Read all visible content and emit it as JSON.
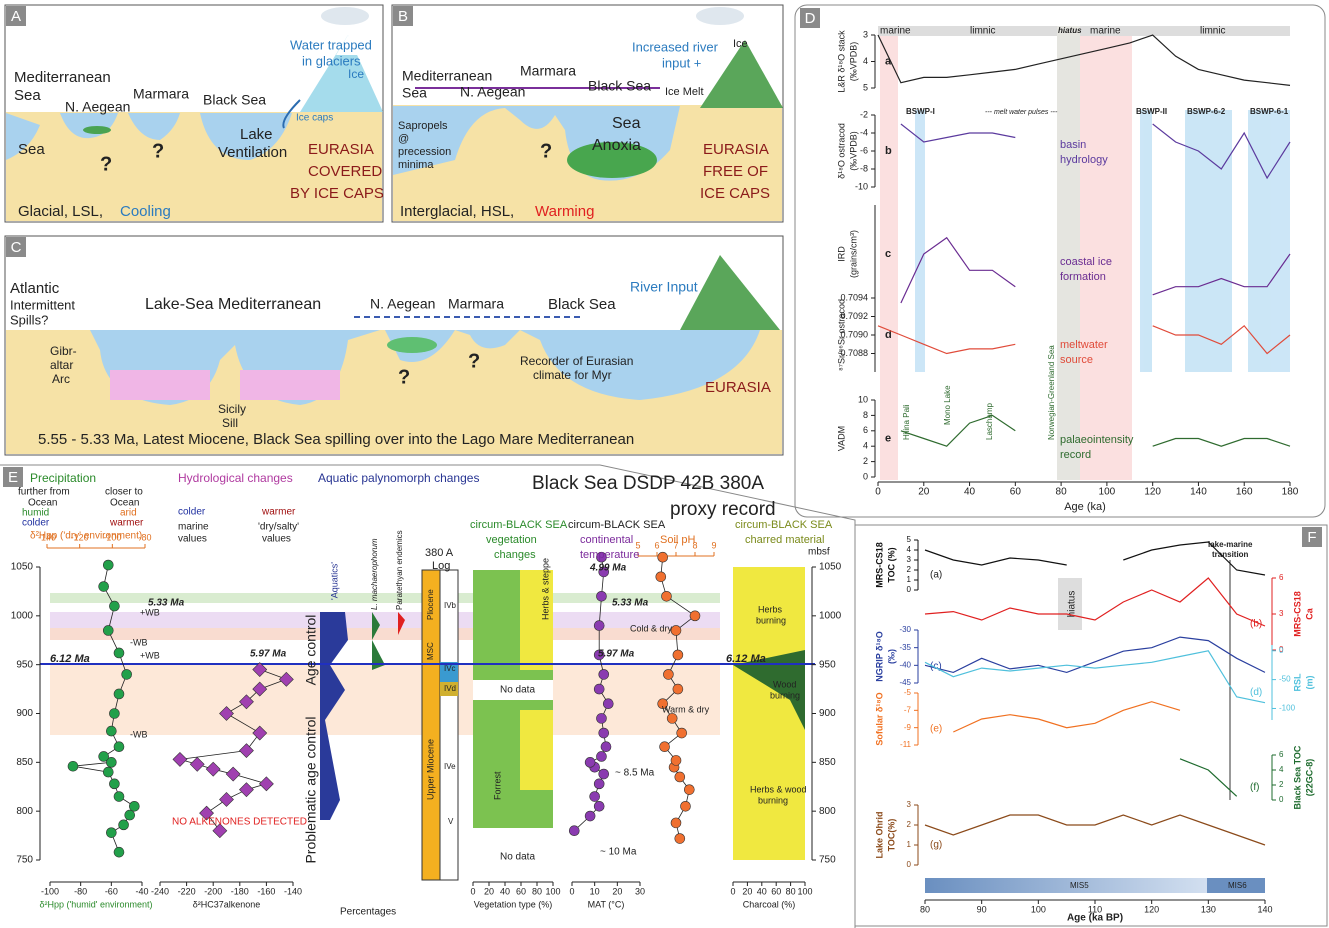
{
  "A": {
    "letter": "A",
    "labels": [
      "Mediterranean",
      "Sea",
      "N. Aegean",
      "Marmara",
      "Black Sea",
      "Water trapped",
      "in glaciers",
      "Ice",
      "Ice caps",
      "Sea",
      "?",
      "?",
      "Lake",
      "Ventilation",
      "EURASIA",
      "COVERED",
      "BY ICE CAPS",
      "Glacial, LSL,",
      "Cooling"
    ]
  },
  "B": {
    "letter": "B",
    "labels": [
      "Increased river",
      "input +",
      "Ice",
      "Mediterranean",
      "Sea",
      "Marmara",
      "N. Aegean",
      "Black Sea",
      "Ice Melt",
      "Sea",
      "Anoxia",
      "Sapropels",
      "@",
      "precession",
      "minima",
      "?",
      "EURASIA",
      "FREE OF",
      "ICE CAPS",
      "Interglacial, HSL,",
      "Warming"
    ]
  },
  "C": {
    "letter": "C",
    "labels": [
      "Atlantic",
      "Intermittent",
      "Spills?",
      "Lake-Sea Mediterranean",
      "N. Aegean",
      "Marmara",
      "Black Sea",
      "River Input",
      "Gibr-",
      "altar",
      "Arc",
      "Sicily",
      "Sill",
      "?",
      "?",
      "Recorder of Eurasian",
      "climate for Myr",
      "EURASIA",
      "5.55 - 5.33 Ma, Latest Miocene, Black Sea spilling over into the Lago Mare Mediterranean"
    ]
  },
  "D": {
    "letter": "D",
    "headers": [
      "marine",
      "limnic",
      "hiatus",
      "marine",
      "limnic"
    ],
    "pulses": [
      "BSWP-I",
      "--- melt water pulses ---",
      "BSWP-II",
      "BSWP-6-2",
      "BSWP-6-1"
    ],
    "labels": [
      "basin",
      "hydrology",
      "coastal ice",
      "formation",
      "meltwater",
      "source",
      "palaeointensity",
      "record"
    ],
    "events": [
      "Hilina Pali",
      "Mono Lake",
      "Laschamp",
      "Norwegian-Greenland Sea"
    ],
    "xlabel": "Age (ka)",
    "xlim": [
      0,
      180
    ],
    "xticks": [
      0,
      20,
      40,
      60,
      80,
      100,
      120,
      140,
      160,
      180
    ],
    "x": [
      0,
      10,
      20,
      30,
      40,
      50,
      60,
      70,
      80,
      90,
      100,
      110,
      120,
      130,
      140,
      150,
      160,
      170,
      180
    ],
    "plots": [
      {
        "letter": "a",
        "ylabel": [
          "L&R δ¹⁸O stack",
          "(‰VPDB)"
        ],
        "ylim": [
          5,
          3
        ],
        "yticks": [
          3,
          4,
          5
        ],
        "color": "#222222",
        "values": [
          3.0,
          4.8,
          4.6,
          4.6,
          4.5,
          4.4,
          4.3,
          4.1,
          3.9,
          3.7,
          3.5,
          3.3,
          3.0,
          3.8,
          4.3,
          4.5,
          4.7,
          4.8,
          4.9
        ]
      },
      {
        "letter": "b",
        "ylabel": [
          "δ¹⁸O ostracod",
          "(‰VPDB)"
        ],
        "ylim": [
          -10,
          -2
        ],
        "yticks": [
          -2,
          -4,
          -6,
          -8,
          -10
        ],
        "color": "#5b3a9e",
        "values": [
          null,
          -3,
          -5,
          -4.5,
          -4,
          -4,
          -4.5,
          null,
          null,
          null,
          null,
          null,
          -3,
          -5,
          -6,
          -8,
          -4,
          -9,
          -5
        ]
      },
      {
        "letter": "c",
        "ylabel": [
          "IRD",
          "(grains/cm³)"
        ],
        "ylim": [
          0,
          6
        ],
        "color": "#6a2c91",
        "values": [
          null,
          0,
          3,
          4,
          2,
          2,
          1,
          null,
          null,
          null,
          null,
          null,
          0.5,
          1,
          1,
          1.5,
          1,
          1,
          3
        ]
      },
      {
        "letter": "d",
        "ylabel": [
          "⁸⁷Sr/⁸⁶Sr ostracod"
        ],
        "ylim": [
          0.7086,
          0.7094
        ],
        "yticks": [
          0.7094,
          0.7092,
          {
            "value": 0.709,
            "label": "0.7090"
          },
          0.7088
        ],
        "color": "#e04b3a",
        "values": [
          0.7091,
          0.709,
          0.7089,
          0.7088,
          0.70885,
          0.70885,
          0.7089,
          null,
          null,
          null,
          null,
          null,
          0.7091,
          0.709,
          0.709,
          0.7089,
          0.7091,
          0.7088,
          0.709
        ]
      },
      {
        "letter": "e",
        "ylabel": [
          "VADM"
        ],
        "ylim": [
          0,
          10
        ],
        "yticks": [
          0,
          2,
          4,
          6,
          8,
          10
        ],
        "color": "#2f6b2f",
        "values": [
          null,
          6,
          5,
          4,
          7,
          8,
          6,
          null,
          null,
          null,
          null,
          null,
          4,
          5,
          5,
          4,
          5,
          5,
          4
        ]
      }
    ]
  },
  "E": {
    "letter": "E",
    "labels": [
      "Precipitation",
      "further from",
      "Ocean",
      "closer to",
      "Ocean",
      "humid",
      "arid",
      "colder",
      "warmer",
      "δ²Hpp ('dry' environment)",
      "Hydrological changes",
      "colder",
      "warmer",
      "marine",
      "values",
      "'dry/salty'",
      "values",
      "Aquatic palynomorph changes",
      "Black Sea DSDP 42B 380A",
      "proxy record",
      "5.33 Ma",
      "+WB",
      "-WB",
      "+WB",
      "6.12 Ma",
      "5.97 Ma",
      "-WB",
      "NO ALKENONES DETECTED",
      "Age control",
      "Problematic age control",
      "'Aquatics'",
      "L. machaerophorum",
      "Paratethyan endemics",
      "380 A",
      "Log",
      "IVb",
      "IVc",
      "IVd",
      "IVe",
      "V",
      "MSC",
      "Pliocene",
      "Upper Miocene",
      "circum-BLACK SEA",
      "vegetation",
      "changes",
      "Herbs & steppe",
      "No data",
      "Forrest",
      "No data",
      "circum-BLACK SEA",
      "continental",
      "temperature",
      "4.99 Ma",
      "5.33 Ma",
      "5.97 Ma",
      "~ 8.5 Ma",
      "~ 10 Ma",
      "Soil pH",
      "Cold & dry",
      "Warm & dry",
      "6.12 Ma",
      "circum-BLACK SEA",
      "charred material",
      "Herbs",
      "burning",
      "Wood",
      "burning",
      "Herbs & wood",
      "burning",
      "Percentages",
      "mbsf"
    ],
    "depth": {
      "lim": [
        750,
        1050
      ],
      "ticks": [
        750,
        800,
        850,
        900,
        950,
        1000,
        1050
      ]
    },
    "precip_top": {
      "lim": [
        -140,
        -80
      ],
      "ticks": [
        -140,
        -120,
        -100,
        -80
      ]
    },
    "precip": {
      "lim": [
        -100,
        -40
      ],
      "ticks": [
        -100,
        -80,
        -60,
        -40
      ],
      "label": "δ²Hpp ('humid' environment)",
      "color": "#22a04a",
      "depths": [
        758,
        778,
        786,
        796,
        805,
        815,
        828,
        840,
        846,
        850,
        856,
        866,
        882,
        900,
        920,
        940,
        962,
        985,
        1010,
        1030,
        1052
      ],
      "values": [
        -55,
        -60,
        -52,
        -48,
        -45,
        -55,
        -58,
        -62,
        -85,
        -60,
        -65,
        -55,
        -60,
        -58,
        -55,
        -50,
        -55,
        -62,
        -58,
        -65,
        -62
      ]
    },
    "hydro": {
      "lim": [
        -240,
        -140
      ],
      "ticks": [
        -240,
        -220,
        -200,
        -180,
        -160,
        -140
      ],
      "label": "δ²HC37alkenone",
      "color": "#a040b0",
      "depths": [
        780,
        798,
        812,
        822,
        828,
        838,
        843,
        848,
        853,
        862,
        880,
        900,
        912,
        925,
        935,
        945
      ],
      "values": [
        -195,
        -205,
        -190,
        -175,
        -160,
        -185,
        -200,
        -212,
        -225,
        -175,
        -165,
        -190,
        -175,
        -165,
        -145,
        -165
      ]
    },
    "vegetation": {
      "lim": [
        0,
        100
      ],
      "ticks": [
        0,
        20,
        40,
        60,
        80,
        100
      ],
      "label": "Vegetation type (%)"
    },
    "mat": {
      "lim": [
        0,
        30
      ],
      "ticks": [
        0,
        10,
        20,
        30
      ],
      "label": "MAT (°C)",
      "color": "#8a3bb0",
      "depths": [
        780,
        795,
        805,
        815,
        828,
        838,
        845,
        850,
        856,
        866,
        880,
        895,
        910,
        925,
        940,
        960,
        990,
        1020,
        1045,
        1060
      ],
      "values": [
        1,
        8,
        12,
        10,
        12,
        14,
        10,
        8,
        13,
        15,
        14,
        13,
        16,
        12,
        14,
        12,
        12,
        13,
        14,
        13
      ]
    },
    "ph": {
      "lim": [
        5,
        9
      ],
      "ticks": [
        5,
        6,
        7,
        8,
        9
      ],
      "color": "#f07030",
      "depths": [
        772,
        788,
        805,
        822,
        835,
        845,
        852,
        866,
        880,
        895,
        910,
        925,
        940,
        960,
        985,
        1000,
        1020,
        1040,
        1060
      ],
      "values": [
        7.2,
        7.0,
        7.5,
        7.7,
        7.2,
        6.9,
        7.0,
        6.4,
        7.3,
        6.8,
        6.3,
        7.1,
        6.6,
        7.1,
        7.0,
        8.0,
        6.5,
        6.2,
        6.3
      ]
    },
    "charcoal": {
      "lim": [
        0,
        100
      ],
      "ticks": [
        0,
        20,
        40,
        60,
        80,
        100
      ],
      "label": "Charcoal (%)"
    }
  },
  "F": {
    "letter": "F",
    "labels": [
      "hiatus",
      "lake-marine",
      "transition",
      "MIS5",
      "MIS6"
    ],
    "xlabel": "Age (ka BP)",
    "xlim": [
      80,
      140
    ],
    "xticks": [
      80,
      90,
      100,
      110,
      120,
      130,
      140
    ],
    "x": [
      80,
      85,
      90,
      95,
      100,
      105,
      110,
      115,
      120,
      125,
      130,
      135,
      140
    ],
    "series": [
      {
        "letter": "(a)",
        "ylabel": [
          "MRS-CS18",
          "TOC (%)"
        ],
        "side": "left",
        "ylim": [
          0,
          5
        ],
        "yticks": [
          0,
          1,
          2,
          3,
          4,
          5
        ],
        "color": "#111111",
        "values": [
          4,
          3,
          2.5,
          3.2,
          3,
          2.5,
          null,
          3,
          4,
          4.5,
          4.8,
          2,
          1.5
        ]
      },
      {
        "letter": "(b)",
        "ylabel": [
          "MRS-CS18",
          "Ca"
        ],
        "side": "right",
        "ylim": [
          0,
          6
        ],
        "yticks": [
          0,
          3,
          6
        ],
        "color": "#e02020",
        "values": [
          3,
          3.2,
          2.5,
          3.5,
          3,
          3,
          2.5,
          4,
          5,
          4,
          6,
          3,
          2
        ]
      },
      {
        "letter": "(c)",
        "ylabel": [
          "NGRIP δ¹⁸O",
          "(‰)"
        ],
        "side": "left",
        "ylim": [
          -45,
          -30
        ],
        "yticks": [
          -30,
          -35,
          -40,
          -45
        ],
        "color": "#2a3f9f",
        "values": [
          -40,
          -42,
          -38,
          -41,
          -40,
          -42,
          -39,
          -36,
          -35,
          -32,
          -33,
          -38,
          -42
        ]
      },
      {
        "letter": "(d)",
        "ylabel": [
          "RSL",
          "(m)"
        ],
        "side": "right",
        "ylim": [
          -120,
          10
        ],
        "yticks": [
          0,
          -50,
          -100
        ],
        "color": "#4fc0dc",
        "values": [
          -20,
          -45,
          -30,
          -35,
          -30,
          -25,
          -30,
          -25,
          -20,
          -10,
          0,
          -80,
          -90
        ]
      },
      {
        "letter": "(e)",
        "ylabel": [
          "Sofular δ¹⁸O"
        ],
        "side": "left",
        "ylim": [
          -11,
          -5
        ],
        "yticks": [
          -5,
          -7,
          -9,
          -11
        ],
        "color": "#f07020",
        "values": [
          null,
          -9.5,
          -8,
          -7.5,
          -8,
          -9,
          -8.5,
          -7,
          -6,
          -7,
          null,
          null,
          null
        ]
      },
      {
        "letter": "(f)",
        "ylabel": [
          "Black Sea TOC",
          "(22GC-8)"
        ],
        "side": "right",
        "ylim": [
          0,
          6
        ],
        "yticks": [
          0,
          2,
          4,
          6
        ],
        "color": "#1e6b2e",
        "values": [
          null,
          null,
          null,
          null,
          null,
          null,
          null,
          null,
          null,
          5.5,
          4,
          0.5,
          null
        ]
      },
      {
        "letter": "(g)",
        "ylabel": [
          "Lake Ohrid",
          "TOC(%)"
        ],
        "side": "left",
        "ylim": [
          0,
          3
        ],
        "yticks": [
          0,
          1,
          2,
          3
        ],
        "color": "#8b4a1a",
        "values": [
          2,
          1.5,
          2,
          2.5,
          2.5,
          2,
          2,
          2.5,
          2,
          2.5,
          2,
          1.5,
          1
        ]
      }
    ]
  }
}
